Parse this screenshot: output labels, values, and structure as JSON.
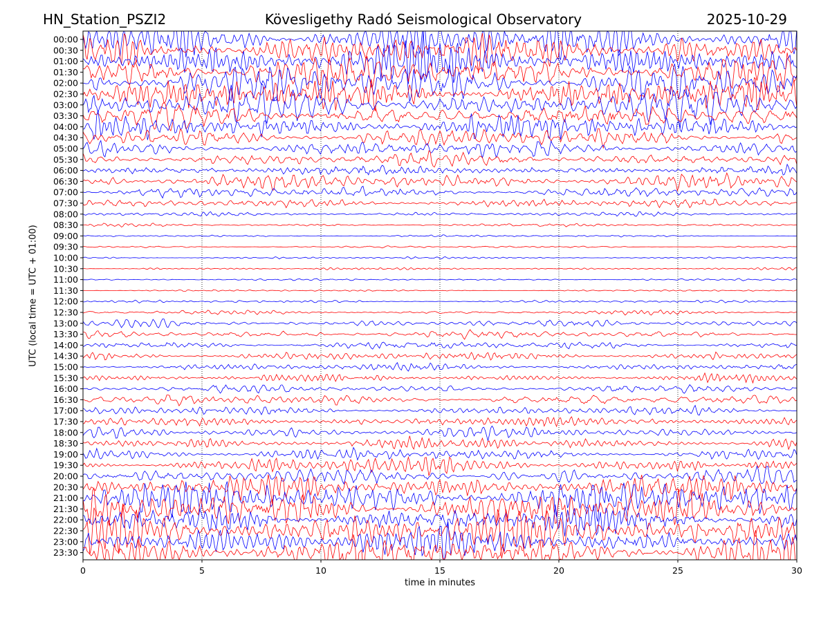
{
  "header": {
    "station": "HN_Station_PSZI2",
    "observatory": "Kövesligethy Radó Seismological Observatory",
    "date": "2025-10-29"
  },
  "chart_data": {
    "type": "line",
    "title": "Kövesligethy Radó Seismological Observatory",
    "xlabel": "time in minutes",
    "ylabel": "UTC (local time = UTC + 01:00)",
    "xlim": [
      0,
      30
    ],
    "x_ticks": [
      "0",
      "5",
      "10",
      "15",
      "20",
      "25",
      "30"
    ],
    "y_ticks": [
      "00:00",
      "00:30",
      "01:00",
      "01:30",
      "02:00",
      "02:30",
      "03:00",
      "03:30",
      "04:00",
      "04:30",
      "05:00",
      "05:30",
      "06:00",
      "06:30",
      "07:00",
      "07:30",
      "08:00",
      "08:30",
      "09:00",
      "09:30",
      "10:00",
      "10:30",
      "11:00",
      "11:30",
      "12:00",
      "12:30",
      "13:00",
      "13:30",
      "14:00",
      "14:30",
      "15:00",
      "15:30",
      "16:00",
      "16:30",
      "17:00",
      "17:30",
      "18:00",
      "18:30",
      "19:00",
      "19:30",
      "20:00",
      "20:30",
      "21:00",
      "21:30",
      "22:00",
      "22:30",
      "23:00",
      "23:30"
    ],
    "trace_colors": [
      "#0000ff",
      "#ff0000"
    ],
    "grid_x_dotted": [
      5,
      10,
      15,
      20,
      25
    ],
    "relative_noise_amplitude": [
      5.0,
      5.0,
      5.0,
      5.0,
      5.0,
      4.5,
      4.0,
      3.5,
      3.0,
      2.6,
      2.4,
      2.2,
      2.0,
      1.8,
      1.5,
      1.2,
      0.6,
      0.4,
      0.3,
      0.25,
      0.3,
      0.3,
      0.3,
      0.3,
      0.3,
      0.5,
      1.0,
      1.2,
      1.3,
      1.3,
      1.3,
      1.3,
      1.3,
      1.3,
      1.4,
      1.4,
      1.4,
      1.5,
      1.6,
      1.8,
      2.2,
      3.0,
      4.0,
      4.5,
      5.0,
      5.0,
      5.0,
      5.0
    ]
  }
}
